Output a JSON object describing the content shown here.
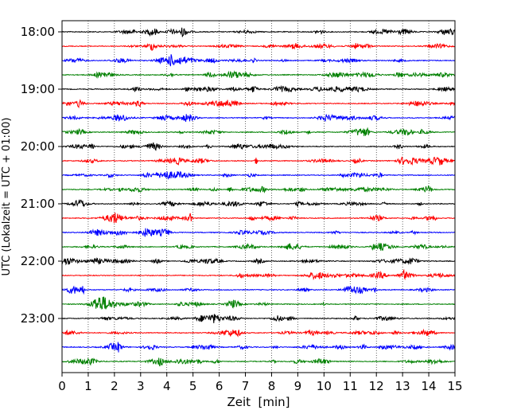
{
  "chart_data": {
    "type": "line",
    "title": "",
    "xlabel": "Zeit  [min]",
    "ylabel": "UTC (Lokalzeit = UTC + 01:00)",
    "xlim": [
      0,
      15
    ],
    "x_ticks": [
      "0",
      "1",
      "2",
      "3",
      "4",
      "5",
      "6",
      "7",
      "8",
      "9",
      "10",
      "11",
      "12",
      "13",
      "14",
      "15"
    ],
    "y_ticks": [
      "18:00",
      "19:00",
      "20:00",
      "21:00",
      "22:00",
      "23:00"
    ],
    "grid": "vertical dotted",
    "legend": "none",
    "trace_interval_min": 15,
    "trace_colors": [
      "#000000",
      "#ff0000",
      "#0000ff",
      "#008000"
    ],
    "series": [
      {
        "start": "18:00",
        "color": "#000000"
      },
      {
        "start": "18:15",
        "color": "#ff0000"
      },
      {
        "start": "18:30",
        "color": "#0000ff"
      },
      {
        "start": "18:45",
        "color": "#008000"
      },
      {
        "start": "19:00",
        "color": "#000000"
      },
      {
        "start": "19:15",
        "color": "#ff0000"
      },
      {
        "start": "19:30",
        "color": "#0000ff"
      },
      {
        "start": "19:45",
        "color": "#008000"
      },
      {
        "start": "20:00",
        "color": "#000000"
      },
      {
        "start": "20:15",
        "color": "#ff0000"
      },
      {
        "start": "20:30",
        "color": "#0000ff"
      },
      {
        "start": "20:45",
        "color": "#008000"
      },
      {
        "start": "21:00",
        "color": "#000000"
      },
      {
        "start": "21:15",
        "color": "#ff0000"
      },
      {
        "start": "21:30",
        "color": "#0000ff"
      },
      {
        "start": "21:45",
        "color": "#008000"
      },
      {
        "start": "22:00",
        "color": "#000000"
      },
      {
        "start": "22:15",
        "color": "#ff0000"
      },
      {
        "start": "22:30",
        "color": "#0000ff"
      },
      {
        "start": "22:45",
        "color": "#008000"
      },
      {
        "start": "23:00",
        "color": "#000000"
      },
      {
        "start": "23:15",
        "color": "#ff0000"
      },
      {
        "start": "23:30",
        "color": "#0000ff"
      },
      {
        "start": "23:45",
        "color": "#008000"
      }
    ]
  }
}
